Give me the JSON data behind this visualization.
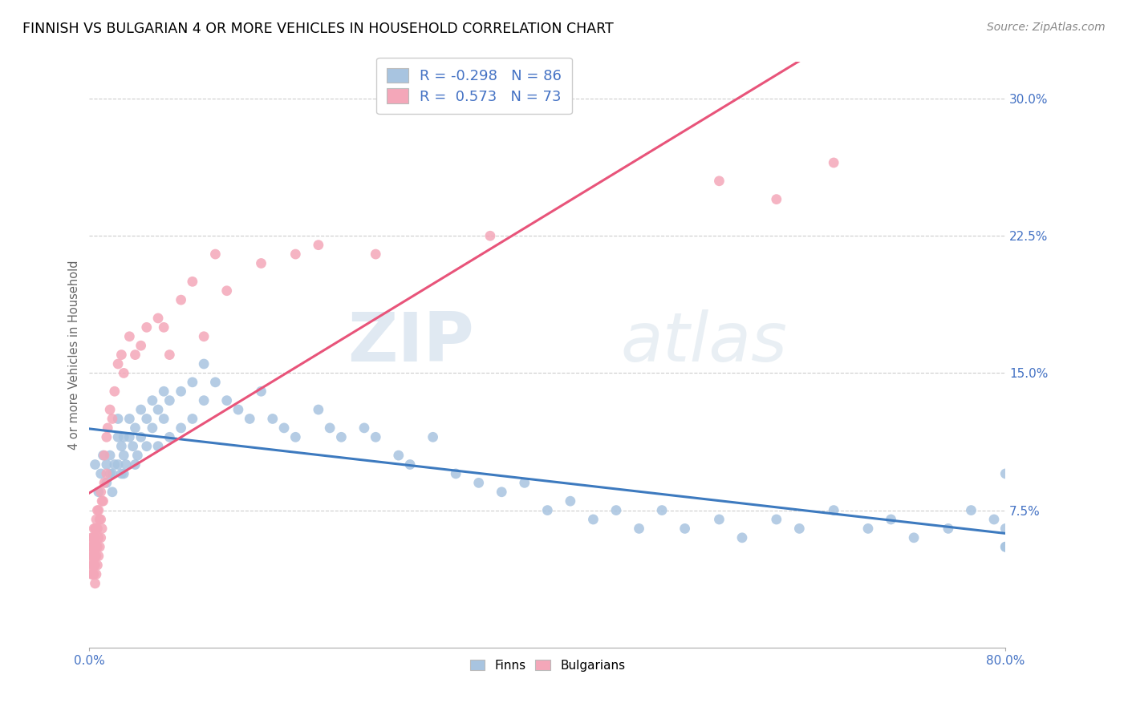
{
  "title": "FINNISH VS BULGARIAN 4 OR MORE VEHICLES IN HOUSEHOLD CORRELATION CHART",
  "source": "Source: ZipAtlas.com",
  "ylabel": "4 or more Vehicles in Household",
  "yticks": [
    "7.5%",
    "15.0%",
    "22.5%",
    "30.0%"
  ],
  "ytick_vals": [
    0.075,
    0.15,
    0.225,
    0.3
  ],
  "xmin": 0.0,
  "xmax": 0.8,
  "ymin": 0.0,
  "ymax": 0.32,
  "legend_r_finns": "-0.298",
  "legend_n_finns": "86",
  "legend_r_bulgarians": "0.573",
  "legend_n_bulgarians": "73",
  "color_finns": "#a8c4e0",
  "color_bulgarians": "#f4a7b9",
  "color_finns_line": "#3d7abf",
  "color_bulgarians_line": "#e8547a",
  "watermark_zip": "ZIP",
  "watermark_atlas": "atlas",
  "finns_x": [
    0.005,
    0.008,
    0.01,
    0.012,
    0.015,
    0.015,
    0.018,
    0.018,
    0.02,
    0.02,
    0.022,
    0.025,
    0.025,
    0.025,
    0.028,
    0.028,
    0.03,
    0.03,
    0.03,
    0.032,
    0.035,
    0.035,
    0.038,
    0.04,
    0.04,
    0.042,
    0.045,
    0.045,
    0.05,
    0.05,
    0.055,
    0.055,
    0.06,
    0.06,
    0.065,
    0.065,
    0.07,
    0.07,
    0.08,
    0.08,
    0.09,
    0.09,
    0.1,
    0.1,
    0.11,
    0.12,
    0.13,
    0.14,
    0.15,
    0.16,
    0.17,
    0.18,
    0.2,
    0.21,
    0.22,
    0.24,
    0.25,
    0.27,
    0.28,
    0.3,
    0.32,
    0.34,
    0.36,
    0.38,
    0.4,
    0.42,
    0.44,
    0.46,
    0.48,
    0.5,
    0.52,
    0.55,
    0.57,
    0.6,
    0.62,
    0.65,
    0.68,
    0.7,
    0.72,
    0.75,
    0.77,
    0.79,
    0.8,
    0.8,
    0.8,
    0.8
  ],
  "finns_y": [
    0.1,
    0.085,
    0.095,
    0.105,
    0.09,
    0.1,
    0.095,
    0.105,
    0.085,
    0.095,
    0.1,
    0.1,
    0.115,
    0.125,
    0.095,
    0.11,
    0.095,
    0.105,
    0.115,
    0.1,
    0.115,
    0.125,
    0.11,
    0.1,
    0.12,
    0.105,
    0.115,
    0.13,
    0.11,
    0.125,
    0.12,
    0.135,
    0.11,
    0.13,
    0.125,
    0.14,
    0.115,
    0.135,
    0.12,
    0.14,
    0.125,
    0.145,
    0.135,
    0.155,
    0.145,
    0.135,
    0.13,
    0.125,
    0.14,
    0.125,
    0.12,
    0.115,
    0.13,
    0.12,
    0.115,
    0.12,
    0.115,
    0.105,
    0.1,
    0.115,
    0.095,
    0.09,
    0.085,
    0.09,
    0.075,
    0.08,
    0.07,
    0.075,
    0.065,
    0.075,
    0.065,
    0.07,
    0.06,
    0.07,
    0.065,
    0.075,
    0.065,
    0.07,
    0.06,
    0.065,
    0.075,
    0.07,
    0.055,
    0.065,
    0.095,
    0.055
  ],
  "bulgarians_x": [
    0.001,
    0.001,
    0.002,
    0.002,
    0.002,
    0.002,
    0.003,
    0.003,
    0.003,
    0.003,
    0.003,
    0.004,
    0.004,
    0.004,
    0.004,
    0.004,
    0.005,
    0.005,
    0.005,
    0.005,
    0.005,
    0.005,
    0.006,
    0.006,
    0.006,
    0.006,
    0.006,
    0.007,
    0.007,
    0.007,
    0.007,
    0.008,
    0.008,
    0.008,
    0.009,
    0.009,
    0.01,
    0.01,
    0.01,
    0.011,
    0.011,
    0.012,
    0.013,
    0.013,
    0.015,
    0.015,
    0.016,
    0.018,
    0.02,
    0.022,
    0.025,
    0.028,
    0.03,
    0.035,
    0.04,
    0.045,
    0.05,
    0.06,
    0.065,
    0.07,
    0.08,
    0.09,
    0.1,
    0.11,
    0.12,
    0.15,
    0.18,
    0.2,
    0.25,
    0.35,
    0.55,
    0.6,
    0.65
  ],
  "bulgarians_y": [
    0.045,
    0.055,
    0.04,
    0.05,
    0.055,
    0.06,
    0.04,
    0.045,
    0.05,
    0.055,
    0.06,
    0.04,
    0.045,
    0.05,
    0.06,
    0.065,
    0.035,
    0.045,
    0.05,
    0.055,
    0.06,
    0.065,
    0.04,
    0.05,
    0.055,
    0.065,
    0.07,
    0.045,
    0.055,
    0.065,
    0.075,
    0.05,
    0.06,
    0.075,
    0.055,
    0.07,
    0.06,
    0.07,
    0.085,
    0.065,
    0.08,
    0.08,
    0.09,
    0.105,
    0.095,
    0.115,
    0.12,
    0.13,
    0.125,
    0.14,
    0.155,
    0.16,
    0.15,
    0.17,
    0.16,
    0.165,
    0.175,
    0.18,
    0.175,
    0.16,
    0.19,
    0.2,
    0.17,
    0.215,
    0.195,
    0.21,
    0.215,
    0.22,
    0.215,
    0.225,
    0.255,
    0.245,
    0.265
  ]
}
